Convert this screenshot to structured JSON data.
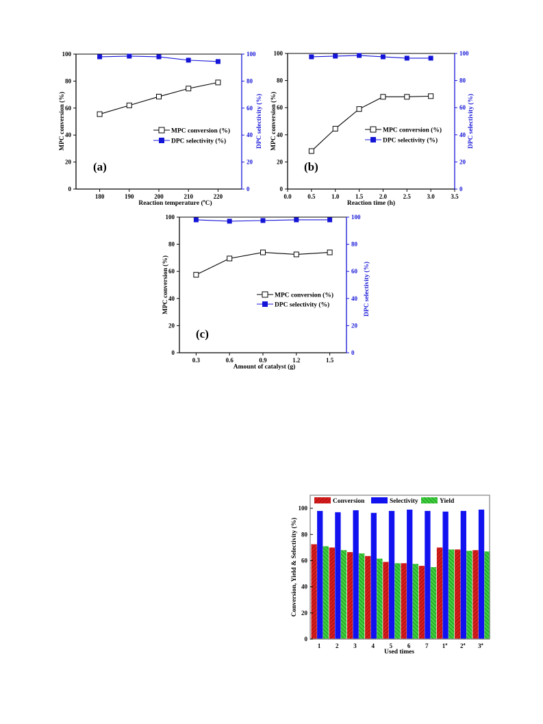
{
  "colors": {
    "conversion_line": "#000000",
    "selectivity_line": "#1515d8",
    "bar_conversion": "#d91c1c",
    "bar_selectivity": "#1212f0",
    "bar_yield": "#3fcf3f"
  },
  "chart_data": [
    {
      "type": "line",
      "panel_label": "(a)",
      "xlabel": "Reaction temperature (°C)",
      "ylabel": "MPC conversion (%)",
      "y2label": "DPC selectivity (%)",
      "x_ticks": [
        "180",
        "190",
        "200",
        "210",
        "220"
      ],
      "y_ticks": [
        "0",
        "20",
        "40",
        "60",
        "80",
        "100"
      ],
      "y2_ticks": [
        "0",
        "20",
        "40",
        "60",
        "80",
        "100"
      ],
      "xlim": [
        172,
        228
      ],
      "ylim": [
        0,
        100
      ],
      "y2lim": [
        0,
        100
      ],
      "legend_position": "right-middle",
      "series": [
        {
          "name": "MPC conversion (%)",
          "axis": "left",
          "marker": "open-square",
          "x": [
            180,
            190,
            200,
            210,
            220
          ],
          "y": [
            55.5,
            62,
            68.5,
            74.5,
            79
          ]
        },
        {
          "name": "DPC selectivity (%)",
          "axis": "right",
          "marker": "filled-square",
          "x": [
            180,
            190,
            200,
            210,
            220
          ],
          "y": [
            98,
            98.5,
            98,
            95.5,
            94.5
          ]
        }
      ]
    },
    {
      "type": "line",
      "panel_label": "(b)",
      "xlabel": "Reaction time (h)",
      "ylabel": "MPC conversion (%)",
      "y2label": "DPC selectivity (%)",
      "x_ticks": [
        "0.0",
        "0.5",
        "1.0",
        "1.5",
        "2.0",
        "2.5",
        "3.0",
        "3.5"
      ],
      "y_ticks": [
        "0",
        "20",
        "40",
        "60",
        "80",
        "100"
      ],
      "y2_ticks": [
        "0",
        "20",
        "40",
        "60",
        "80",
        "100"
      ],
      "xlim": [
        0,
        3.5
      ],
      "ylim": [
        0,
        100
      ],
      "y2lim": [
        0,
        100
      ],
      "legend_position": "right-middle",
      "series": [
        {
          "name": "MPC conversion (%)",
          "axis": "left",
          "marker": "open-square",
          "x": [
            0.5,
            1.0,
            1.5,
            2.0,
            2.5,
            3.0
          ],
          "y": [
            28,
            44.5,
            59,
            68,
            68,
            68.5
          ]
        },
        {
          "name": "DPC selectivity (%)",
          "axis": "right",
          "marker": "filled-square",
          "x": [
            0.5,
            1.0,
            1.5,
            2.0,
            2.5,
            3.0
          ],
          "y": [
            97.5,
            98,
            98.5,
            97.5,
            96.5,
            96.5
          ]
        }
      ]
    },
    {
      "type": "line",
      "panel_label": "(c)",
      "xlabel": "Amount of catalyst (g)",
      "ylabel": "MPC conversion (%)",
      "y2label": "DPC selectivity (%)",
      "x_ticks": [
        "0.3",
        "0.6",
        "0.9",
        "1.2",
        "1.5"
      ],
      "y_ticks": [
        "0",
        "20",
        "40",
        "60",
        "80",
        "100"
      ],
      "y2_ticks": [
        "0",
        "20",
        "40",
        "60",
        "80",
        "100"
      ],
      "xlim": [
        0.15,
        1.65
      ],
      "ylim": [
        0,
        100
      ],
      "y2lim": [
        0,
        100
      ],
      "legend_position": "right-middle",
      "series": [
        {
          "name": "MPC conversion (%)",
          "axis": "left",
          "marker": "open-square",
          "x": [
            0.3,
            0.6,
            0.9,
            1.2,
            1.5
          ],
          "y": [
            57.5,
            69.5,
            74,
            72.5,
            74
          ]
        },
        {
          "name": "DPC selectivity (%)",
          "axis": "right",
          "marker": "filled-square",
          "x": [
            0.3,
            0.6,
            0.9,
            1.2,
            1.5
          ],
          "y": [
            98,
            97,
            97.5,
            98,
            98
          ]
        }
      ]
    },
    {
      "type": "bar",
      "xlabel": "Used times",
      "ylabel": "Conversion, Yield & Selectivity (%)",
      "categories": [
        "1",
        "2",
        "3",
        "4",
        "5",
        "6",
        "7",
        "1",
        "2",
        "3"
      ],
      "category_superscripts": [
        "",
        "",
        "",
        "",
        "",
        "",
        "",
        "a",
        "a",
        "a"
      ],
      "y_ticks": [
        "0",
        "20",
        "40",
        "60",
        "80",
        "100"
      ],
      "ylim": [
        0,
        110
      ],
      "legend_position": "top",
      "series": [
        {
          "name": "Conversion",
          "values": [
            72.5,
            70,
            66.5,
            63.5,
            59,
            58,
            56,
            70,
            68.5,
            68
          ]
        },
        {
          "name": "Selectivity",
          "values": [
            98,
            97,
            98.5,
            96.5,
            98,
            99,
            98,
            97.5,
            98,
            99
          ]
        },
        {
          "name": "Yield",
          "values": [
            71,
            68,
            65.5,
            61.5,
            58,
            57.5,
            55,
            68.5,
            67.5,
            67
          ]
        }
      ]
    }
  ]
}
